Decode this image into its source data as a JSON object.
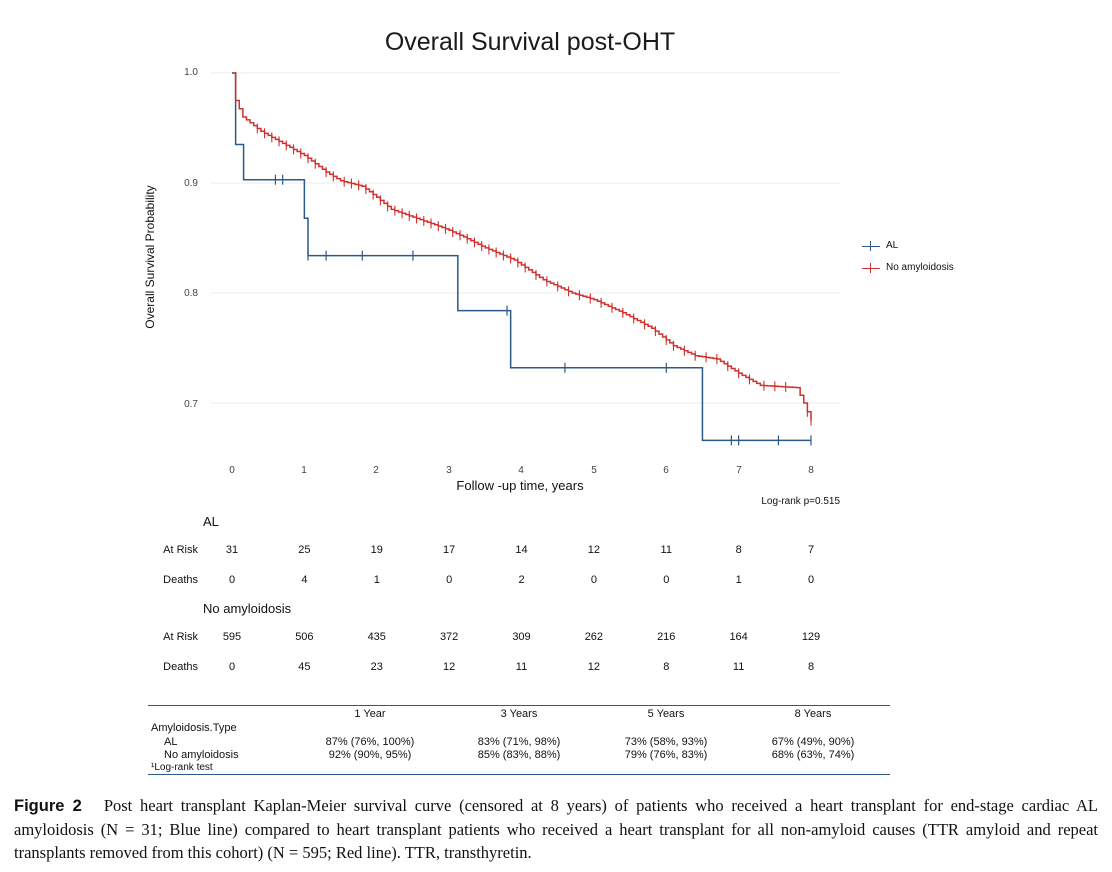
{
  "chart_data": {
    "type": "line",
    "title": "Overall Survival post-OHT",
    "xlabel": "Follow -up time, years",
    "ylabel": "Overall Survival Probability",
    "xlim": [
      0,
      8
    ],
    "ylim": [
      0.66,
      1.0
    ],
    "x_ticks": [
      "0",
      "1",
      "2",
      "3",
      "4",
      "5",
      "6",
      "7",
      "8"
    ],
    "y_ticks": [
      "1.0",
      "0.9",
      "0.8",
      "0.7"
    ],
    "legend_position": "right",
    "series": [
      {
        "name": "AL",
        "color": "#2b5a88",
        "steps": [
          [
            0,
            1.0
          ],
          [
            0.05,
            0.935
          ],
          [
            0.16,
            0.903
          ],
          [
            1.0,
            0.868
          ],
          [
            1.05,
            0.834
          ],
          [
            3.12,
            0.784
          ],
          [
            3.85,
            0.732
          ],
          [
            6.5,
            0.666
          ],
          [
            8.0,
            0.666
          ]
        ],
        "censor_x": [
          0.6,
          0.7,
          1.05,
          1.3,
          1.8,
          2.5,
          3.8,
          4.6,
          6.0,
          6.9,
          7.0,
          7.55,
          8.0
        ]
      },
      {
        "name": "No amyloidosis",
        "color": "#d0312d",
        "points": [
          [
            0,
            1.0
          ],
          [
            0.05,
            0.975
          ],
          [
            0.15,
            0.96
          ],
          [
            0.4,
            0.947
          ],
          [
            0.7,
            0.936
          ],
          [
            1.0,
            0.925
          ],
          [
            1.3,
            0.91
          ],
          [
            1.5,
            0.902
          ],
          [
            1.8,
            0.897
          ],
          [
            2.0,
            0.887
          ],
          [
            2.2,
            0.876
          ],
          [
            2.5,
            0.869
          ],
          [
            2.8,
            0.862
          ],
          [
            3.0,
            0.857
          ],
          [
            3.2,
            0.851
          ],
          [
            3.5,
            0.841
          ],
          [
            3.9,
            0.83
          ],
          [
            4.3,
            0.812
          ],
          [
            4.7,
            0.8
          ],
          [
            5.0,
            0.794
          ],
          [
            5.4,
            0.782
          ],
          [
            5.8,
            0.768
          ],
          [
            6.1,
            0.752
          ],
          [
            6.4,
            0.743
          ],
          [
            6.7,
            0.74
          ],
          [
            7.0,
            0.727
          ],
          [
            7.3,
            0.716
          ],
          [
            7.8,
            0.714
          ],
          [
            7.9,
            0.7
          ],
          [
            8.0,
            0.684
          ]
        ],
        "censor_x": [
          0.35,
          0.45,
          0.55,
          0.65,
          0.75,
          0.85,
          0.95,
          1.05,
          1.15,
          1.3,
          1.4,
          1.55,
          1.65,
          1.75,
          1.85,
          1.95,
          2.05,
          2.15,
          2.25,
          2.35,
          2.45,
          2.55,
          2.65,
          2.75,
          2.85,
          2.95,
          3.05,
          3.15,
          3.25,
          3.35,
          3.45,
          3.55,
          3.65,
          3.75,
          3.85,
          3.95,
          4.05,
          4.2,
          4.35,
          4.5,
          4.65,
          4.8,
          4.95,
          5.1,
          5.25,
          5.4,
          5.55,
          5.7,
          5.85,
          6.0,
          6.1,
          6.25,
          6.4,
          6.55,
          6.7,
          6.85,
          7.0,
          7.15,
          7.35,
          7.5,
          7.65,
          7.95,
          8.0
        ]
      }
    ]
  },
  "log_rank": "Log-rank p=0.515",
  "risk_table": {
    "years": [
      0,
      1,
      2,
      3,
      4,
      5,
      6,
      7,
      8
    ],
    "groups": [
      {
        "name": "AL",
        "at_risk_label": "At Risk",
        "deaths_label": "Deaths",
        "at_risk": [
          "31",
          "25",
          "19",
          "17",
          "14",
          "12",
          "11",
          "8",
          "7"
        ],
        "deaths": [
          "0",
          "4",
          "1",
          "0",
          "2",
          "0",
          "0",
          "1",
          "0"
        ]
      },
      {
        "name": "No amyloidosis",
        "at_risk_label": "At Risk",
        "deaths_label": "Deaths",
        "at_risk": [
          "595",
          "506",
          "435",
          "372",
          "309",
          "262",
          "216",
          "164",
          "129"
        ],
        "deaths": [
          "0",
          "45",
          "23",
          "12",
          "11",
          "12",
          "8",
          "11",
          "8"
        ]
      }
    ]
  },
  "summary_table": {
    "headers": [
      "1 Year",
      "3 Years",
      "5 Years",
      "8 Years"
    ],
    "group_header": "Amyloidosis.Type",
    "rows": [
      {
        "label": "AL",
        "values": [
          "87% (76%, 100%)",
          "83% (71%, 98%)",
          "73% (58%, 93%)",
          "67% (49%, 90%)"
        ]
      },
      {
        "label": "No amyloidosis",
        "values": [
          "92% (90%, 95%)",
          "85% (83%, 88%)",
          "79% (76%, 83%)",
          "68% (63%, 74%)"
        ]
      }
    ],
    "footnote": "¹Log-rank test"
  },
  "caption": {
    "label": "Figure 2",
    "text": "Post heart transplant Kaplan-Meier survival curve (censored at 8 years) of patients who received a heart transplant for end-stage cardiac AL amyloidosis (N = 31; Blue line) compared to heart transplant patients who received a heart transplant for all non-amyloid causes (TTR amyloid and repeat transplants removed from this cohort) (N = 595; Red line). TTR, transthyretin."
  }
}
